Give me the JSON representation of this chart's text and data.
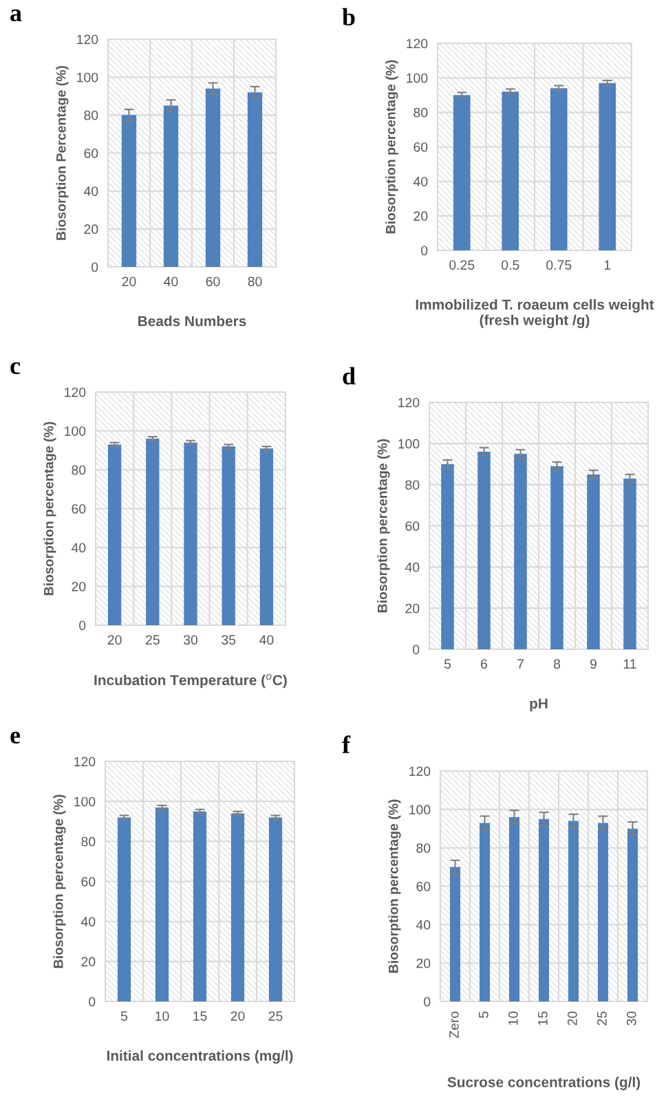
{
  "chart_data": [
    {
      "type": "bar",
      "title": "a",
      "xlabel": "Beads Numbers",
      "ylabel": "Biosorption Percentage (%)",
      "categories": [
        "20",
        "40",
        "60",
        "80"
      ],
      "values": [
        80,
        85,
        94,
        92
      ],
      "errors": [
        3,
        3,
        3,
        3
      ],
      "color": "#4f81bd",
      "ylim": [
        0,
        120
      ],
      "yticks": [
        0,
        20,
        40,
        60,
        80,
        100,
        120
      ],
      "grid": true
    },
    {
      "type": "bar",
      "title": "b",
      "xlabel": "Immobilized T. roaeum cells weight\n(fresh weight /g)",
      "ylabel": "Biosorption percentage (%)",
      "categories": [
        "0.25",
        "0.5",
        "0.75",
        "1"
      ],
      "values": [
        90,
        92,
        94,
        97
      ],
      "errors": [
        1.5,
        1.5,
        1.5,
        1.5
      ],
      "color": "#4f81bd",
      "ylim": [
        0,
        120
      ],
      "yticks": [
        0,
        20,
        40,
        60,
        80,
        100,
        120
      ],
      "grid": true
    },
    {
      "type": "bar",
      "title": "c",
      "xlabel": "Incubation Temperature ($^{o}$C)",
      "ylabel": "Biosorption percentage (%)",
      "categories": [
        "20",
        "25",
        "30",
        "35",
        "40"
      ],
      "values": [
        93,
        96,
        94,
        92,
        91
      ],
      "errors": [
        1,
        1,
        1,
        1,
        1
      ],
      "color": "#4f81bd",
      "ylim": [
        0,
        120
      ],
      "yticks": [
        0,
        20,
        40,
        60,
        80,
        100,
        120
      ],
      "grid": true
    },
    {
      "type": "bar",
      "title": "d",
      "xlabel": "pH",
      "ylabel": "Biosorption percentage (%)",
      "categories": [
        "5",
        "6",
        "7",
        "8",
        "9",
        "11"
      ],
      "values": [
        90,
        96,
        95,
        89,
        85,
        83
      ],
      "errors": [
        2,
        2,
        2,
        2,
        2,
        2
      ],
      "color": "#4f81bd",
      "ylim": [
        0,
        120
      ],
      "yticks": [
        0,
        20,
        40,
        60,
        80,
        100,
        120
      ],
      "grid": true
    },
    {
      "type": "bar",
      "title": "e",
      "xlabel": "Initial concentrations (mg/l)",
      "ylabel": "Biosorption percentage (%)",
      "categories": [
        "5",
        "10",
        "15",
        "20",
        "25"
      ],
      "values": [
        92,
        97,
        95,
        94,
        92
      ],
      "errors": [
        1,
        1,
        1,
        1,
        1
      ],
      "color": "#4f81bd",
      "ylim": [
        0,
        120
      ],
      "yticks": [
        0,
        20,
        40,
        60,
        80,
        100,
        120
      ],
      "grid": true
    },
    {
      "type": "bar",
      "title": "f",
      "xlabel": "Sucrose concentrations (g/l)",
      "ylabel": "Biosorption percentage (%)",
      "categories": [
        "Zero",
        "5",
        "10",
        "15",
        "20",
        "25",
        "30"
      ],
      "values": [
        70,
        93,
        96,
        95,
        94,
        93,
        90
      ],
      "errors": [
        3.5,
        3.5,
        3.5,
        3.5,
        3.5,
        3.5,
        3.5
      ],
      "color": "#4f81bd",
      "ylim": [
        0,
        120
      ],
      "yticks": [
        0,
        20,
        40,
        60,
        80,
        100,
        120
      ],
      "grid": true
    }
  ]
}
